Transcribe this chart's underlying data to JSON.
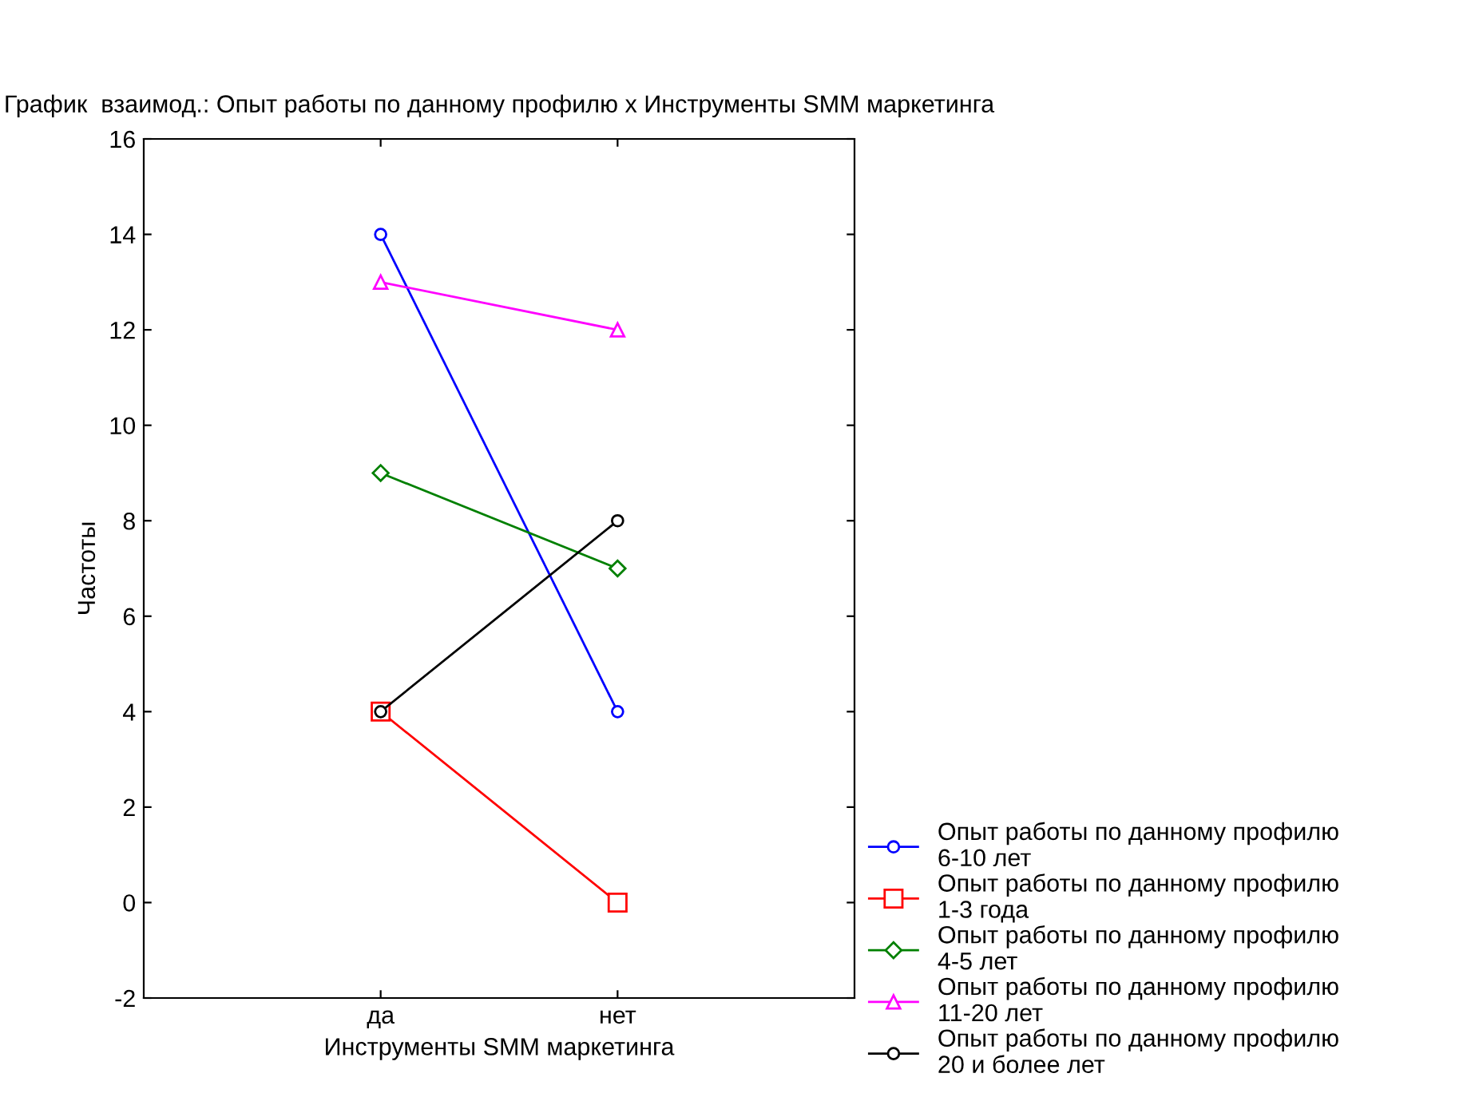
{
  "chart_data": {
    "type": "line",
    "title": "График  взаимод.: Опыт работы по данному профилю x Инструменты SMM маркетинга",
    "xlabel": "Инструменты SMM маркетинга",
    "ylabel": "Частоты",
    "categories": [
      "да",
      "нет"
    ],
    "series": [
      {
        "name": "Опыт работы по данному профилю 6-10 лет",
        "color": "#0000ff",
        "marker": "circle",
        "values": [
          14,
          4
        ]
      },
      {
        "name": "Опыт работы по данному профилю 1-3 года",
        "color": "#ff0000",
        "marker": "square",
        "values": [
          4,
          0
        ]
      },
      {
        "name": "Опыт работы по данному профилю 4-5 лет",
        "color": "#008000",
        "marker": "diamond",
        "values": [
          9,
          7
        ]
      },
      {
        "name": "Опыт работы по данному профилю 11-20 лет",
        "color": "#ff00ff",
        "marker": "triangle",
        "values": [
          13,
          12
        ]
      },
      {
        "name": "Опыт работы по данному профилю 20 и более лет",
        "color": "#000000",
        "marker": "circle",
        "values": [
          4,
          8
        ]
      }
    ],
    "ylim": [
      -2,
      16
    ],
    "yticks": [
      -2,
      0,
      2,
      4,
      6,
      8,
      10,
      12,
      14,
      16
    ],
    "grid": false,
    "legend": "bottom right",
    "line_style": "solid"
  }
}
